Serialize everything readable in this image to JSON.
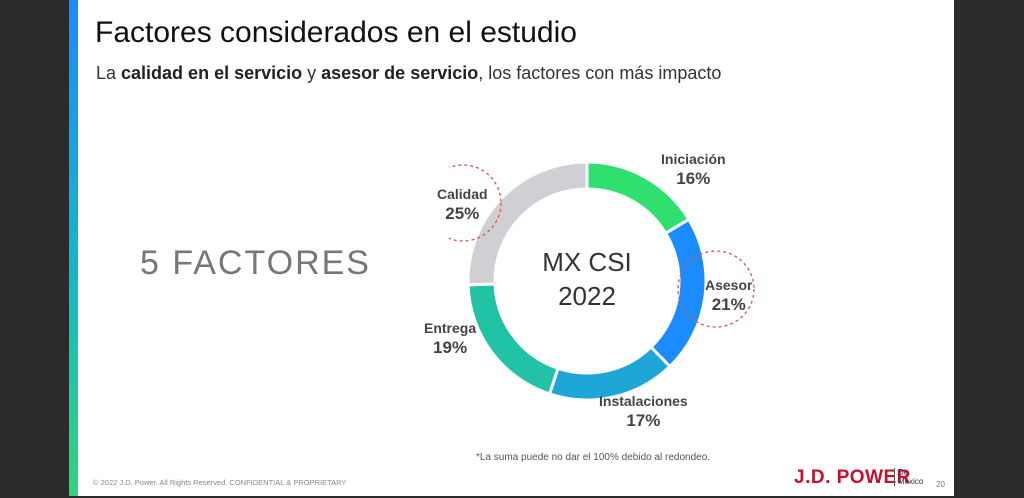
{
  "slide": {
    "title": "Factores considerados en el estudio",
    "subtitle_parts": [
      "La ",
      "calidad en el servicio",
      " y ",
      "asesor de servicio",
      ", los factores con más impacto"
    ],
    "factors_label": "5  FACTORES",
    "footnote": "*La suma puede no dar el 100% debido al redondeo.",
    "copyright": "© 2022 J.D. Power. All Rights Reserved. CONFIDENTIAL & PROPRIETARY",
    "brand": "J.D. POWER",
    "brand_sub_1": "De",
    "brand_sub_2": "México",
    "page_number": "20"
  },
  "chart_data": {
    "type": "pie",
    "donut": true,
    "center_title": "MX CSI",
    "center_subtitle": "2022",
    "segments": [
      {
        "name": "Iniciación",
        "value": 16,
        "label": "16%",
        "color": "#2fe06f",
        "highlighted": false
      },
      {
        "name": "Asesor",
        "value": 21,
        "label": "21%",
        "color": "#1a8cff",
        "highlighted": true
      },
      {
        "name": "Instalaciones",
        "value": 17,
        "label": "17%",
        "color": "#1ea6d6",
        "highlighted": false
      },
      {
        "name": "Entrega",
        "value": 19,
        "label": "19%",
        "color": "#22c2a6",
        "highlighted": false
      },
      {
        "name": "Calidad",
        "value": 25,
        "label": "25%",
        "color": "#d0d0d4",
        "highlighted": true
      }
    ],
    "highlight_color": "#d9534f"
  }
}
